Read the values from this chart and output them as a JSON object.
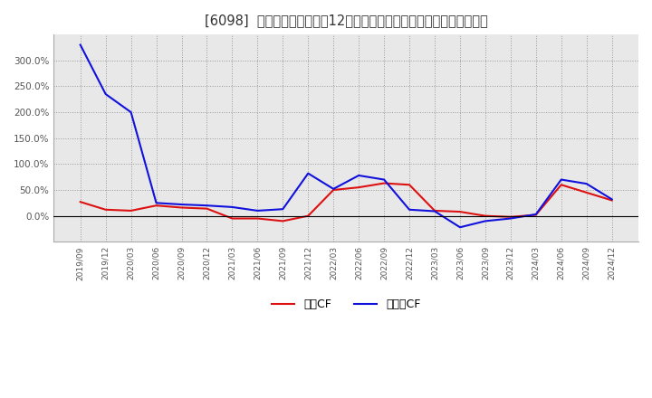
{
  "title": "[6098]  キャッシュフローの12か月移動合計の対前年同期増減率の推移",
  "title_fontsize": 10.5,
  "background_color": "#ffffff",
  "plot_bg_color": "#e8e8e8",
  "grid_color": "#999999",
  "line_color_eigyo": "#dd1111",
  "line_color_free": "#1111dd",
  "legend_eigyo": "営業CF",
  "legend_free": "フリーCF",
  "ylim_min": -0.5,
  "ylim_max": 3.5,
  "ytick_vals": [
    0.0,
    0.5,
    1.0,
    1.5,
    2.0,
    2.5,
    3.0
  ],
  "ytick_labels": [
    "0.0%",
    "50.0%",
    "100.0%",
    "150.0%",
    "200.0%",
    "250.0%",
    "300.0%"
  ],
  "dates": [
    "2019/09",
    "2019/12",
    "2020/03",
    "2020/06",
    "2020/09",
    "2020/12",
    "2021/03",
    "2021/06",
    "2021/09",
    "2021/12",
    "2022/03",
    "2022/06",
    "2022/09",
    "2022/12",
    "2023/03",
    "2023/06",
    "2023/09",
    "2023/12",
    "2024/03",
    "2024/06",
    "2024/09",
    "2024/12"
  ],
  "eigyo_cf": [
    0.27,
    0.12,
    0.1,
    0.2,
    0.16,
    0.14,
    -0.05,
    -0.05,
    -0.1,
    0.0,
    0.5,
    0.55,
    0.63,
    0.6,
    0.1,
    0.08,
    0.0,
    -0.02,
    0.02,
    0.6,
    0.45,
    0.3
  ],
  "free_cf": [
    3.3,
    2.35,
    2.0,
    0.25,
    0.22,
    0.2,
    0.17,
    0.1,
    0.13,
    0.82,
    0.52,
    0.78,
    0.7,
    0.12,
    0.09,
    -0.22,
    -0.1,
    -0.05,
    0.03,
    0.7,
    0.62,
    0.32
  ]
}
